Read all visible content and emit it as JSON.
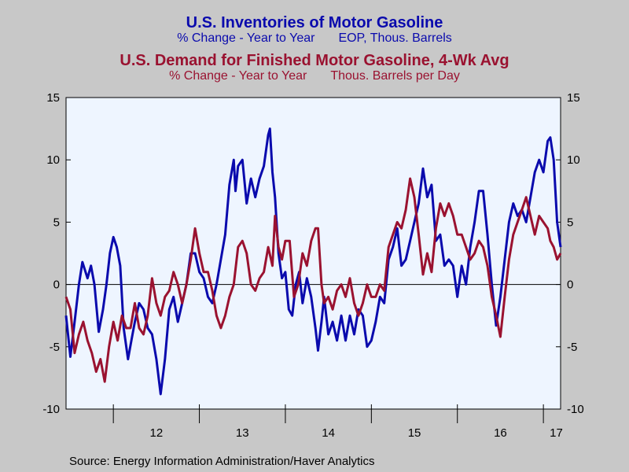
{
  "chart_data": {
    "type": "line",
    "titles": [
      {
        "main": "U.S. Inventories of Motor Gasoline",
        "sub_left": "% Change - Year to Year",
        "sub_right": "EOP, Thous. Barrels",
        "color": "#0a0aad"
      },
      {
        "main": "U.S. Demand for Finished Motor Gasoline, 4-Wk Avg",
        "sub_left": "% Change - Year to Year",
        "sub_right": "Thous. Barrels per Day",
        "color": "#9a1230"
      }
    ],
    "xlim": [
      2011.45,
      2017.2
    ],
    "ylim": [
      -10,
      15
    ],
    "yticks": [
      "15",
      "10",
      "5",
      "0",
      "-5",
      "-10"
    ],
    "xtick_labels": [
      "12",
      "13",
      "14",
      "15",
      "16",
      "17"
    ],
    "grid": false,
    "background": "#eef5ff",
    "series": [
      {
        "color": "#0a0aad",
        "points": [
          [
            2011.45,
            -2.5
          ],
          [
            2011.5,
            -5.8
          ],
          [
            2011.55,
            -3
          ],
          [
            2011.6,
            0
          ],
          [
            2011.64,
            1.8
          ],
          [
            2011.7,
            0.5
          ],
          [
            2011.74,
            1.5
          ],
          [
            2011.78,
            0
          ],
          [
            2011.83,
            -3.8
          ],
          [
            2011.88,
            -2
          ],
          [
            2011.92,
            0
          ],
          [
            2011.96,
            2.5
          ],
          [
            2012.0,
            3.8
          ],
          [
            2012.04,
            3
          ],
          [
            2012.08,
            1.5
          ],
          [
            2012.12,
            -3.5
          ],
          [
            2012.17,
            -6
          ],
          [
            2012.21,
            -4.5
          ],
          [
            2012.25,
            -3
          ],
          [
            2012.3,
            -1.5
          ],
          [
            2012.35,
            -2
          ],
          [
            2012.4,
            -3.5
          ],
          [
            2012.45,
            -4
          ],
          [
            2012.5,
            -6
          ],
          [
            2012.55,
            -8.8
          ],
          [
            2012.6,
            -6
          ],
          [
            2012.65,
            -2
          ],
          [
            2012.7,
            -1
          ],
          [
            2012.75,
            -3
          ],
          [
            2012.8,
            -1.5
          ],
          [
            2012.85,
            0
          ],
          [
            2012.9,
            2.5
          ],
          [
            2012.95,
            2.5
          ],
          [
            2013.0,
            1
          ],
          [
            2013.05,
            0.5
          ],
          [
            2013.1,
            -1
          ],
          [
            2013.15,
            -1.5
          ],
          [
            2013.2,
            0
          ],
          [
            2013.25,
            2
          ],
          [
            2013.3,
            4
          ],
          [
            2013.35,
            8
          ],
          [
            2013.4,
            10
          ],
          [
            2013.42,
            7.5
          ],
          [
            2013.45,
            9.5
          ],
          [
            2013.5,
            10
          ],
          [
            2013.55,
            6.5
          ],
          [
            2013.6,
            8.5
          ],
          [
            2013.65,
            7
          ],
          [
            2013.7,
            8.5
          ],
          [
            2013.75,
            9.5
          ],
          [
            2013.8,
            12
          ],
          [
            2013.82,
            12.5
          ],
          [
            2013.85,
            9
          ],
          [
            2013.88,
            7
          ],
          [
            2013.92,
            2.5
          ],
          [
            2013.96,
            0.5
          ],
          [
            2014.0,
            1
          ],
          [
            2014.04,
            -2
          ],
          [
            2014.08,
            -2.5
          ],
          [
            2014.12,
            0
          ],
          [
            2014.16,
            1
          ],
          [
            2014.2,
            -1.5
          ],
          [
            2014.25,
            0.5
          ],
          [
            2014.3,
            -1
          ],
          [
            2014.35,
            -3.5
          ],
          [
            2014.38,
            -5.3
          ],
          [
            2014.42,
            -3
          ],
          [
            2014.45,
            -1
          ],
          [
            2014.5,
            -4
          ],
          [
            2014.55,
            -3
          ],
          [
            2014.6,
            -4.5
          ],
          [
            2014.65,
            -2.5
          ],
          [
            2014.7,
            -4.5
          ],
          [
            2014.75,
            -2.5
          ],
          [
            2014.8,
            -4
          ],
          [
            2014.85,
            -2
          ],
          [
            2014.9,
            -2.5
          ],
          [
            2014.95,
            -5
          ],
          [
            2015.0,
            -4.5
          ],
          [
            2015.05,
            -3
          ],
          [
            2015.1,
            -1
          ],
          [
            2015.15,
            -1.5
          ],
          [
            2015.2,
            2
          ],
          [
            2015.25,
            3
          ],
          [
            2015.3,
            4.5
          ],
          [
            2015.35,
            1.5
          ],
          [
            2015.4,
            2
          ],
          [
            2015.45,
            3.5
          ],
          [
            2015.5,
            5
          ],
          [
            2015.55,
            6.5
          ],
          [
            2015.6,
            9.3
          ],
          [
            2015.65,
            7
          ],
          [
            2015.7,
            8
          ],
          [
            2015.75,
            3.5
          ],
          [
            2015.8,
            4
          ],
          [
            2015.85,
            1.5
          ],
          [
            2015.9,
            2
          ],
          [
            2015.95,
            1.5
          ],
          [
            2016.0,
            -1
          ],
          [
            2016.05,
            1.5
          ],
          [
            2016.1,
            0
          ],
          [
            2016.15,
            3
          ],
          [
            2016.2,
            5
          ],
          [
            2016.25,
            7.5
          ],
          [
            2016.3,
            7.5
          ],
          [
            2016.35,
            4
          ],
          [
            2016.4,
            0
          ],
          [
            2016.45,
            -3.3
          ],
          [
            2016.5,
            -1
          ],
          [
            2016.55,
            2
          ],
          [
            2016.6,
            5
          ],
          [
            2016.65,
            6.5
          ],
          [
            2016.7,
            5.5
          ],
          [
            2016.75,
            6
          ],
          [
            2016.8,
            5
          ],
          [
            2016.85,
            7
          ],
          [
            2016.9,
            9
          ],
          [
            2016.95,
            10
          ],
          [
            2017.0,
            9
          ],
          [
            2017.05,
            11.5
          ],
          [
            2017.08,
            11.8
          ],
          [
            2017.12,
            10
          ],
          [
            2017.16,
            5
          ],
          [
            2017.2,
            3
          ]
        ]
      },
      {
        "color": "#9a1230",
        "points": [
          [
            2011.45,
            -1
          ],
          [
            2011.5,
            -2
          ],
          [
            2011.55,
            -5.5
          ],
          [
            2011.6,
            -4
          ],
          [
            2011.65,
            -3
          ],
          [
            2011.7,
            -4.5
          ],
          [
            2011.75,
            -5.5
          ],
          [
            2011.8,
            -7
          ],
          [
            2011.85,
            -6
          ],
          [
            2011.9,
            -7.8
          ],
          [
            2011.95,
            -5
          ],
          [
            2012.0,
            -3
          ],
          [
            2012.05,
            -4.5
          ],
          [
            2012.1,
            -2.5
          ],
          [
            2012.15,
            -3.5
          ],
          [
            2012.2,
            -3.5
          ],
          [
            2012.25,
            -1.5
          ],
          [
            2012.3,
            -3.5
          ],
          [
            2012.35,
            -4
          ],
          [
            2012.4,
            -2.5
          ],
          [
            2012.45,
            0.5
          ],
          [
            2012.5,
            -1.5
          ],
          [
            2012.55,
            -2.5
          ],
          [
            2012.6,
            -1
          ],
          [
            2012.65,
            -0.5
          ],
          [
            2012.7,
            1
          ],
          [
            2012.75,
            0
          ],
          [
            2012.8,
            -1.5
          ],
          [
            2012.85,
            0
          ],
          [
            2012.9,
            2
          ],
          [
            2012.95,
            4.5
          ],
          [
            2013.0,
            2.5
          ],
          [
            2013.05,
            1
          ],
          [
            2013.1,
            1
          ],
          [
            2013.15,
            -0.5
          ],
          [
            2013.2,
            -2.5
          ],
          [
            2013.25,
            -3.5
          ],
          [
            2013.3,
            -2.5
          ],
          [
            2013.35,
            -1
          ],
          [
            2013.4,
            0
          ],
          [
            2013.45,
            3
          ],
          [
            2013.5,
            3.5
          ],
          [
            2013.55,
            2.5
          ],
          [
            2013.6,
            0
          ],
          [
            2013.65,
            -0.5
          ],
          [
            2013.7,
            0.5
          ],
          [
            2013.75,
            1
          ],
          [
            2013.8,
            3
          ],
          [
            2013.85,
            1.5
          ],
          [
            2013.88,
            5.5
          ],
          [
            2013.92,
            3
          ],
          [
            2013.96,
            2
          ],
          [
            2014.0,
            3.5
          ],
          [
            2014.05,
            3.5
          ],
          [
            2014.1,
            -1
          ],
          [
            2014.15,
            0
          ],
          [
            2014.2,
            2.5
          ],
          [
            2014.25,
            1.5
          ],
          [
            2014.3,
            3.5
          ],
          [
            2014.35,
            4.5
          ],
          [
            2014.38,
            4.5
          ],
          [
            2014.42,
            0
          ],
          [
            2014.45,
            -1.5
          ],
          [
            2014.5,
            -1
          ],
          [
            2014.55,
            -2
          ],
          [
            2014.6,
            -0.5
          ],
          [
            2014.65,
            0
          ],
          [
            2014.7,
            -1
          ],
          [
            2014.75,
            0.5
          ],
          [
            2014.8,
            -1.5
          ],
          [
            2014.85,
            -2.5
          ],
          [
            2014.9,
            -1.5
          ],
          [
            2014.95,
            0
          ],
          [
            2015.0,
            -1
          ],
          [
            2015.05,
            -1
          ],
          [
            2015.1,
            0
          ],
          [
            2015.15,
            -0.5
          ],
          [
            2015.2,
            3
          ],
          [
            2015.25,
            4
          ],
          [
            2015.3,
            5
          ],
          [
            2015.35,
            4.5
          ],
          [
            2015.4,
            6
          ],
          [
            2015.45,
            8.5
          ],
          [
            2015.5,
            7
          ],
          [
            2015.55,
            4
          ],
          [
            2015.6,
            0.8
          ],
          [
            2015.65,
            2.5
          ],
          [
            2015.7,
            1
          ],
          [
            2015.75,
            4.5
          ],
          [
            2015.8,
            6.5
          ],
          [
            2015.85,
            5.5
          ],
          [
            2015.9,
            6.5
          ],
          [
            2015.95,
            5.5
          ],
          [
            2016.0,
            4
          ],
          [
            2016.05,
            4
          ],
          [
            2016.1,
            3
          ],
          [
            2016.15,
            2
          ],
          [
            2016.2,
            2.5
          ],
          [
            2016.25,
            3.5
          ],
          [
            2016.3,
            3
          ],
          [
            2016.35,
            1.5
          ],
          [
            2016.4,
            -1
          ],
          [
            2016.45,
            -2.5
          ],
          [
            2016.5,
            -4.2
          ],
          [
            2016.55,
            -1
          ],
          [
            2016.6,
            2
          ],
          [
            2016.65,
            4
          ],
          [
            2016.7,
            5
          ],
          [
            2016.75,
            6
          ],
          [
            2016.8,
            7
          ],
          [
            2016.85,
            5.5
          ],
          [
            2016.9,
            4
          ],
          [
            2016.95,
            5.5
          ],
          [
            2017.0,
            5
          ],
          [
            2017.05,
            4.5
          ],
          [
            2017.08,
            3.5
          ],
          [
            2017.12,
            3
          ],
          [
            2017.16,
            2
          ],
          [
            2017.2,
            2.5
          ]
        ]
      }
    ]
  },
  "source": "Source:  Energy Information Administration/Haver Analytics"
}
